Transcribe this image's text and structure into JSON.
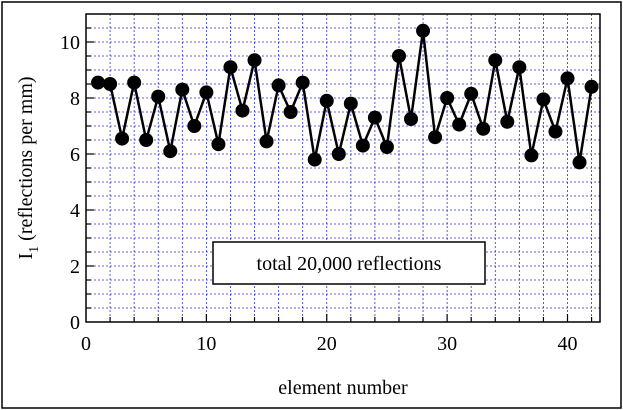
{
  "chart_data": {
    "type": "line",
    "xlabel": "element number",
    "ylabel": "I",
    "ylabel_subscript": "1",
    "ylabel_suffix": " (reflections per mm)",
    "annotation": "total 20,000 reflections",
    "xlim": [
      0,
      42.7
    ],
    "ylim": [
      0,
      11
    ],
    "x_ticks": [
      0,
      10,
      20,
      30,
      40
    ],
    "y_ticks": [
      0,
      2,
      4,
      6,
      8,
      10
    ],
    "x_tick_labels": [
      "0",
      "10",
      "20",
      "30",
      "40"
    ],
    "y_tick_labels": [
      "0",
      "2",
      "4",
      "6",
      "8",
      "10"
    ],
    "grid": true,
    "colors": {
      "line": "#000000",
      "marker": "#000000",
      "grid": "#3333cc",
      "frame": "#000000"
    },
    "x": [
      1,
      2,
      3,
      4,
      5,
      6,
      7,
      8,
      9,
      10,
      11,
      12,
      13,
      14,
      15,
      16,
      17,
      18,
      19,
      20,
      21,
      22,
      23,
      24,
      25,
      26,
      27,
      28,
      29,
      30,
      31,
      32,
      33,
      34,
      35,
      36,
      37,
      38,
      39,
      40,
      41,
      42
    ],
    "y": [
      8.55,
      8.5,
      6.55,
      8.55,
      6.5,
      8.05,
      6.1,
      8.3,
      7.0,
      8.2,
      6.35,
      9.1,
      7.55,
      9.35,
      6.45,
      8.45,
      7.5,
      8.55,
      5.8,
      7.9,
      6.0,
      7.8,
      6.3,
      7.3,
      6.25,
      9.5,
      7.25,
      10.4,
      6.6,
      8.0,
      7.05,
      8.15,
      6.9,
      9.35,
      7.15,
      9.1,
      5.95,
      7.95,
      6.8,
      8.7,
      5.7,
      8.4
    ]
  }
}
